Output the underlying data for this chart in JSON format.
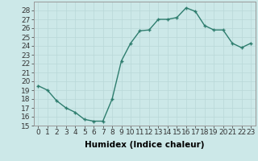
{
  "x": [
    0,
    1,
    2,
    3,
    4,
    5,
    6,
    7,
    8,
    9,
    10,
    11,
    12,
    13,
    14,
    15,
    16,
    17,
    18,
    19,
    20,
    21,
    22,
    23
  ],
  "y": [
    19.5,
    19.0,
    17.8,
    17.0,
    16.5,
    15.7,
    15.5,
    15.5,
    18.0,
    22.3,
    24.3,
    25.7,
    25.8,
    27.0,
    27.0,
    27.2,
    28.3,
    27.9,
    26.3,
    25.8,
    25.8,
    24.3,
    23.8,
    24.3
  ],
  "line_color": "#2e7d6e",
  "marker_color": "#2e7d6e",
  "bg_color": "#cce8e8",
  "grid_color": "#b8d8d8",
  "xlabel": "Humidex (Indice chaleur)",
  "xlim": [
    -0.5,
    23.5
  ],
  "ylim": [
    15,
    29
  ],
  "yticks": [
    15,
    16,
    17,
    18,
    19,
    20,
    21,
    22,
    23,
    24,
    25,
    26,
    27,
    28
  ],
  "xticks": [
    0,
    1,
    2,
    3,
    4,
    5,
    6,
    7,
    8,
    9,
    10,
    11,
    12,
    13,
    14,
    15,
    16,
    17,
    18,
    19,
    20,
    21,
    22,
    23
  ],
  "xlabel_fontsize": 7.5,
  "tick_fontsize": 6.5,
  "line_width": 1.0,
  "marker_size": 3.5
}
